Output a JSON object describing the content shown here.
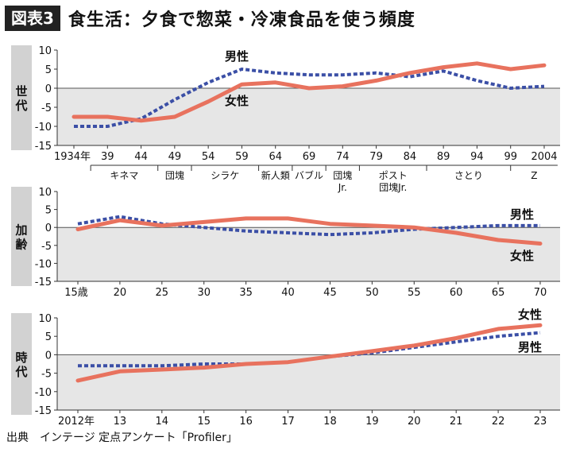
{
  "header": {
    "fig_label": "図表3",
    "title": "食生活：夕食で惣菜・冷凍食品を使う頻度"
  },
  "source": "出典　インテージ 定点アンケート「Profiler」",
  "colors": {
    "female": "#E8725E",
    "male": "#3B4FA6",
    "panel_bg": "#E6E6E6",
    "label_bg": "#D2D2D2"
  },
  "chart_data": [
    {
      "type": "line",
      "panel_label": "世代",
      "x_tick_labels": [
        "1934年",
        "39",
        "44",
        "49",
        "54",
        "59",
        "64",
        "69",
        "74",
        "79",
        "84",
        "89",
        "94",
        "99",
        "2004"
      ],
      "generation_labels": [
        "キネマ",
        "団塊",
        "シラケ",
        "新人類",
        "バブル",
        "団塊\nJr.",
        "ポスト\n団塊Jr.",
        "さとり",
        "Z"
      ],
      "ylim": [
        -15,
        10
      ],
      "yticks": [
        10,
        5,
        0,
        -5,
        -10,
        -15
      ],
      "grid": false,
      "series": [
        {
          "name": "男性",
          "style": "dashed",
          "values": [
            -10,
            -10,
            -8,
            -3,
            1.5,
            5,
            4,
            3.5,
            3.5,
            4,
            3,
            4.5,
            2,
            0,
            0.5
          ]
        },
        {
          "name": "女性",
          "style": "solid",
          "values": [
            -7.5,
            -7.5,
            -8.5,
            -7.5,
            -3.5,
            1,
            1.5,
            0,
            0.5,
            2,
            4,
            5.5,
            6.5,
            5,
            6
          ]
        }
      ]
    },
    {
      "type": "line",
      "panel_label": "加齢",
      "x_tick_labels": [
        "15歳",
        "20",
        "25",
        "30",
        "35",
        "40",
        "45",
        "50",
        "55",
        "60",
        "65",
        "70"
      ],
      "ylim": [
        -15,
        10
      ],
      "yticks": [
        10,
        5,
        0,
        -5,
        -10,
        -15
      ],
      "grid": false,
      "series": [
        {
          "name": "男性",
          "style": "dashed",
          "values": [
            1,
            3,
            1,
            0,
            -1,
            -1.5,
            -2,
            -1.5,
            -0.5,
            0,
            0.5,
            0.5
          ]
        },
        {
          "name": "女性",
          "style": "solid",
          "values": [
            -0.5,
            2,
            0.5,
            1.5,
            2.5,
            2.5,
            1,
            0.5,
            0,
            -1.5,
            -3.5,
            -4.5
          ]
        }
      ]
    },
    {
      "type": "line",
      "panel_label": "時代",
      "x_tick_labels": [
        "2012年",
        "13",
        "14",
        "15",
        "16",
        "17",
        "18",
        "19",
        "20",
        "21",
        "22",
        "23"
      ],
      "ylim": [
        -15,
        10
      ],
      "yticks": [
        10,
        5,
        0,
        -5,
        -10,
        -15
      ],
      "grid": false,
      "series": [
        {
          "name": "男性",
          "style": "dashed",
          "values": [
            -3,
            -3,
            -3,
            -2.5,
            -2.5,
            -2,
            -0.5,
            0.5,
            2,
            3.5,
            5,
            6
          ]
        },
        {
          "name": "女性",
          "style": "solid",
          "values": [
            -7,
            -4.5,
            -4,
            -3.5,
            -2.5,
            -2,
            -0.5,
            1,
            2.5,
            4.5,
            7,
            8
          ]
        }
      ]
    }
  ]
}
